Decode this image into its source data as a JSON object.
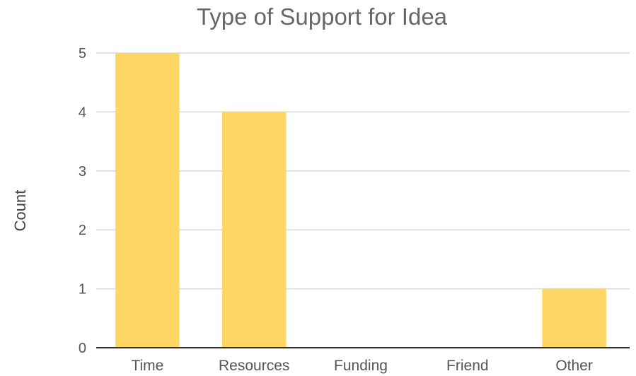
{
  "chart_data": {
    "type": "bar",
    "title": "Type of Support for Idea",
    "xlabel": "",
    "ylabel": "Count",
    "categories": [
      "Time",
      "Resources",
      "Funding",
      "Friend",
      "Other"
    ],
    "values": [
      5,
      4,
      0,
      0,
      1
    ],
    "yticks": [
      "0",
      "1",
      "2",
      "3",
      "4",
      "5"
    ],
    "ylim": [
      0,
      5
    ],
    "grid": true,
    "legend": "none",
    "bar_color": "#fdd663"
  }
}
